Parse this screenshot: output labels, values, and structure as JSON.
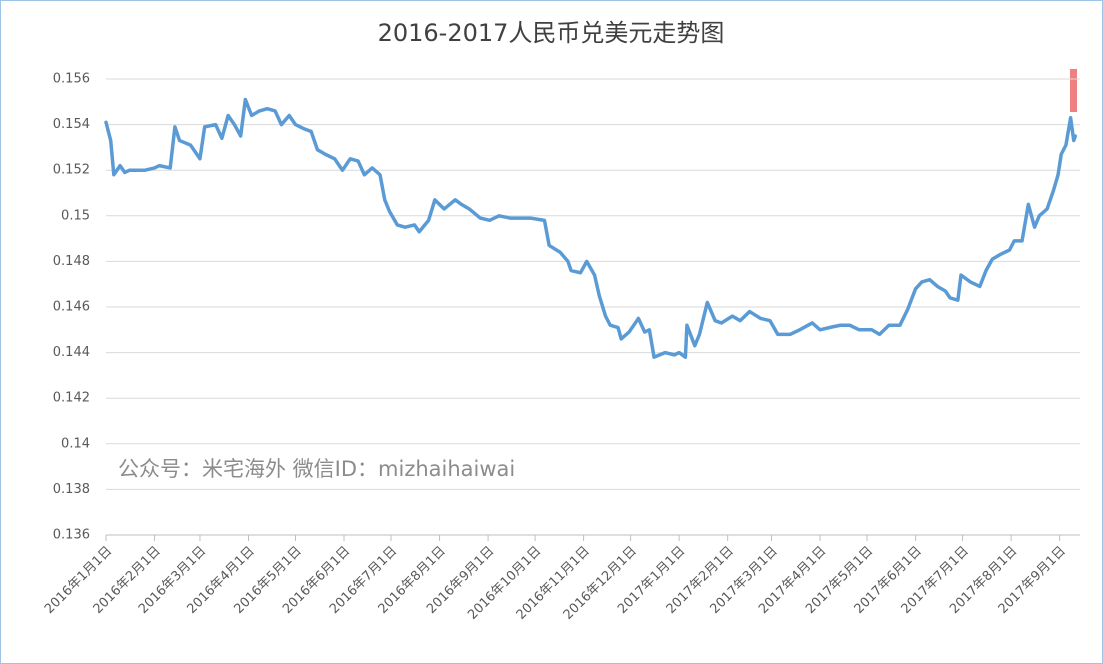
{
  "chart_data": {
    "type": "line",
    "title": "2016-2017人民币兑美元走势图",
    "annotation": "公众号：米宅海外 微信ID：mizhaihaiwai",
    "color": "#5b9bd5",
    "grid": true,
    "xlim": [
      "2016-01-01",
      "2017-09-14"
    ],
    "ylim": [
      0.136,
      0.157
    ],
    "yticks": [
      0.136,
      0.138,
      0.14,
      0.142,
      0.144,
      0.146,
      0.148,
      0.15,
      0.152,
      0.154,
      0.156
    ],
    "xticks": [
      {
        "value": "2016-01-01",
        "label": "2016年1月1日"
      },
      {
        "value": "2016-02-01",
        "label": "2016年2月1日"
      },
      {
        "value": "2016-03-01",
        "label": "2016年3月1日"
      },
      {
        "value": "2016-04-01",
        "label": "2016年4月1日"
      },
      {
        "value": "2016-05-01",
        "label": "2016年5月1日"
      },
      {
        "value": "2016-06-01",
        "label": "2016年6月1日"
      },
      {
        "value": "2016-07-01",
        "label": "2016年7月1日"
      },
      {
        "value": "2016-08-01",
        "label": "2016年8月1日"
      },
      {
        "value": "2016-09-01",
        "label": "2016年9月1日"
      },
      {
        "value": "2016-10-01",
        "label": "2016年10月1日"
      },
      {
        "value": "2016-11-01",
        "label": "2016年11月1日"
      },
      {
        "value": "2016-12-01",
        "label": "2016年12月1日"
      },
      {
        "value": "2017-01-01",
        "label": "2017年1月1日"
      },
      {
        "value": "2017-02-01",
        "label": "2017年2月1日"
      },
      {
        "value": "2017-03-01",
        "label": "2017年3月1日"
      },
      {
        "value": "2017-04-01",
        "label": "2017年4月1日"
      },
      {
        "value": "2017-05-01",
        "label": "2017年5月1日"
      },
      {
        "value": "2017-06-01",
        "label": "2017年6月1日"
      },
      {
        "value": "2017-07-01",
        "label": "2017年7月1日"
      },
      {
        "value": "2017-08-01",
        "label": "2017年8月1日"
      },
      {
        "value": "2017-09-01",
        "label": "2017年9月1日"
      }
    ],
    "x": [
      "2016-01-01",
      "2016-01-04",
      "2016-01-06",
      "2016-01-10",
      "2016-01-13",
      "2016-01-16",
      "2016-01-26",
      "2016-02-01",
      "2016-02-04",
      "2016-02-11",
      "2016-02-14",
      "2016-02-17",
      "2016-02-24",
      "2016-03-01",
      "2016-03-04",
      "2016-03-11",
      "2016-03-15",
      "2016-03-19",
      "2016-03-23",
      "2016-03-27",
      "2016-03-30",
      "2016-04-03",
      "2016-04-08",
      "2016-04-13",
      "2016-04-18",
      "2016-04-22",
      "2016-04-27",
      "2016-05-01",
      "2016-05-07",
      "2016-05-11",
      "2016-05-15",
      "2016-05-20",
      "2016-05-26",
      "2016-05-31",
      "2016-06-05",
      "2016-06-10",
      "2016-06-14",
      "2016-06-19",
      "2016-06-24",
      "2016-06-27",
      "2016-06-30",
      "2016-07-05",
      "2016-07-10",
      "2016-07-16",
      "2016-07-19",
      "2016-07-25",
      "2016-07-29",
      "2016-08-04",
      "2016-08-11",
      "2016-08-15",
      "2016-08-20",
      "2016-08-27",
      "2016-09-02",
      "2016-09-08",
      "2016-09-15",
      "2016-09-21",
      "2016-09-28",
      "2016-10-07",
      "2016-10-10",
      "2016-10-17",
      "2016-10-22",
      "2016-10-24",
      "2016-10-30",
      "2016-11-03",
      "2016-11-08",
      "2016-11-11",
      "2016-11-15",
      "2016-11-18",
      "2016-11-23",
      "2016-11-25",
      "2016-11-30",
      "2016-12-06",
      "2016-12-10",
      "2016-12-13",
      "2016-12-16",
      "2016-12-23",
      "2016-12-29",
      "2017-01-01",
      "2017-01-05",
      "2017-01-06",
      "2017-01-11",
      "2017-01-14",
      "2017-01-19",
      "2017-01-24",
      "2017-01-28",
      "2017-02-04",
      "2017-02-09",
      "2017-02-15",
      "2017-02-22",
      "2017-02-28",
      "2017-03-05",
      "2017-03-13",
      "2017-03-19",
      "2017-03-27",
      "2017-04-01",
      "2017-04-07",
      "2017-04-14",
      "2017-04-20",
      "2017-04-26",
      "2017-05-04",
      "2017-05-09",
      "2017-05-15",
      "2017-05-22",
      "2017-05-27",
      "2017-06-01",
      "2017-06-05",
      "2017-06-10",
      "2017-06-15",
      "2017-06-20",
      "2017-06-23",
      "2017-06-28",
      "2017-06-30",
      "2017-07-06",
      "2017-07-12",
      "2017-07-16",
      "2017-07-20",
      "2017-07-25",
      "2017-07-31",
      "2017-08-03",
      "2017-08-08",
      "2017-08-12",
      "2017-08-16",
      "2017-08-19",
      "2017-08-24",
      "2017-08-28",
      "2017-08-31",
      "2017-09-02",
      "2017-09-05",
      "2017-09-08",
      "2017-09-10",
      "2017-09-11"
    ],
    "values": [
      0.1541,
      0.1533,
      0.1518,
      0.1522,
      0.1519,
      0.152,
      0.152,
      0.1521,
      0.1522,
      0.1521,
      0.1539,
      0.1533,
      0.1531,
      0.1525,
      0.1539,
      0.154,
      0.1534,
      0.1544,
      0.154,
      0.1535,
      0.1551,
      0.1544,
      0.1546,
      0.1547,
      0.1546,
      0.154,
      0.1544,
      0.154,
      0.1538,
      0.1537,
      0.1529,
      0.1527,
      0.1525,
      0.152,
      0.1525,
      0.1524,
      0.1518,
      0.1521,
      0.1518,
      0.1507,
      0.1502,
      0.1496,
      0.1495,
      0.1496,
      0.1493,
      0.1498,
      0.1507,
      0.1503,
      0.1507,
      0.1505,
      0.1503,
      0.1499,
      0.1498,
      0.15,
      0.1499,
      0.1499,
      0.1499,
      0.1498,
      0.1487,
      0.1484,
      0.148,
      0.1476,
      0.1475,
      0.148,
      0.1474,
      0.1465,
      0.1456,
      0.1452,
      0.1451,
      0.1446,
      0.1449,
      0.1455,
      0.1449,
      0.145,
      0.1438,
      0.144,
      0.1439,
      0.144,
      0.1438,
      0.1452,
      0.1443,
      0.1448,
      0.1462,
      0.1454,
      0.1453,
      0.1456,
      0.1454,
      0.1458,
      0.1455,
      0.1454,
      0.1448,
      0.1448,
      0.145,
      0.1453,
      0.145,
      0.1451,
      0.1452,
      0.1452,
      0.145,
      0.145,
      0.1448,
      0.1452,
      0.1452,
      0.1459,
      0.1468,
      0.1471,
      0.1472,
      0.1469,
      0.1467,
      0.1464,
      0.1463,
      0.1474,
      0.1471,
      0.1469,
      0.1476,
      0.1481,
      0.1483,
      0.1485,
      0.1489,
      0.1489,
      0.1505,
      0.1495,
      0.15,
      0.1503,
      0.1511,
      0.1518,
      0.1527,
      0.1531,
      0.1543,
      0.1533,
      0.1535
    ]
  }
}
